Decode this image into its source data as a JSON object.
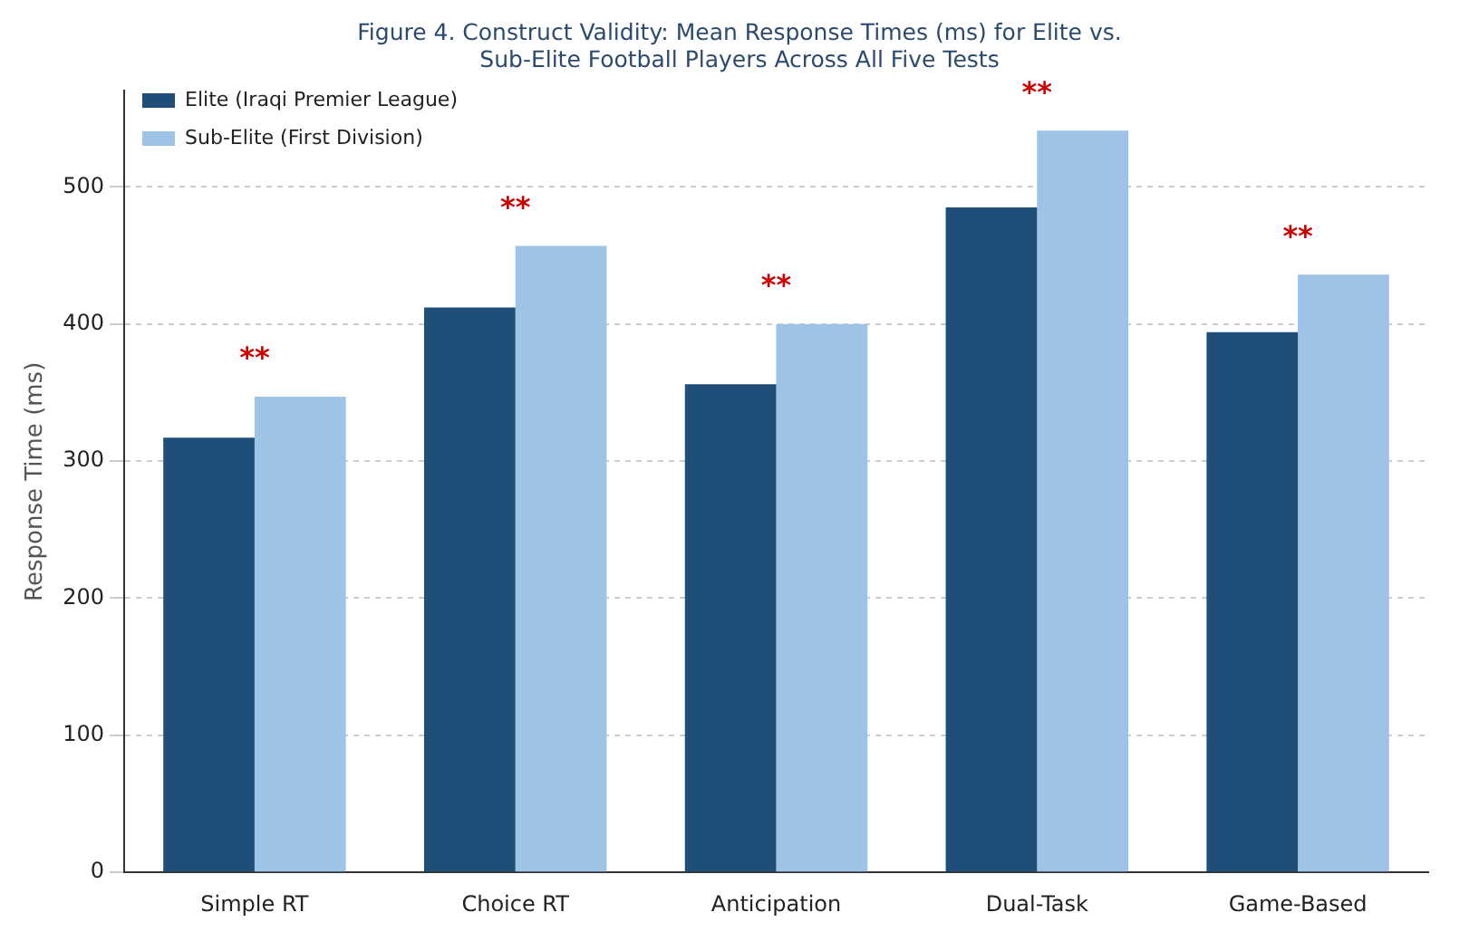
{
  "chart_data": {
    "type": "bar",
    "title": "Figure 4. Construct Validity: Mean Response Times (ms) for Elite vs. Sub-Elite Football Players Across All Five Tests",
    "ylabel": "Response Time (ms)",
    "categories": [
      "Simple RT",
      "Choice RT",
      "Anticipation",
      "Dual-Task",
      "Game-Based"
    ],
    "series": [
      {
        "name": "Elite (Iraqi Premier League)",
        "color": "#1f4e79",
        "values": [
          317,
          412,
          356,
          485,
          394
        ]
      },
      {
        "name": "Sub-Elite (First Division)",
        "color": "#9dc3e6",
        "values": [
          347,
          457,
          400,
          541,
          436
        ]
      }
    ],
    "ylim": [
      0,
      570
    ],
    "yticks": [
      0,
      100,
      200,
      300,
      400,
      500
    ],
    "grid": "y",
    "legend": "top left",
    "annotations": [
      "**",
      "**",
      "**",
      "**",
      "**"
    ]
  }
}
